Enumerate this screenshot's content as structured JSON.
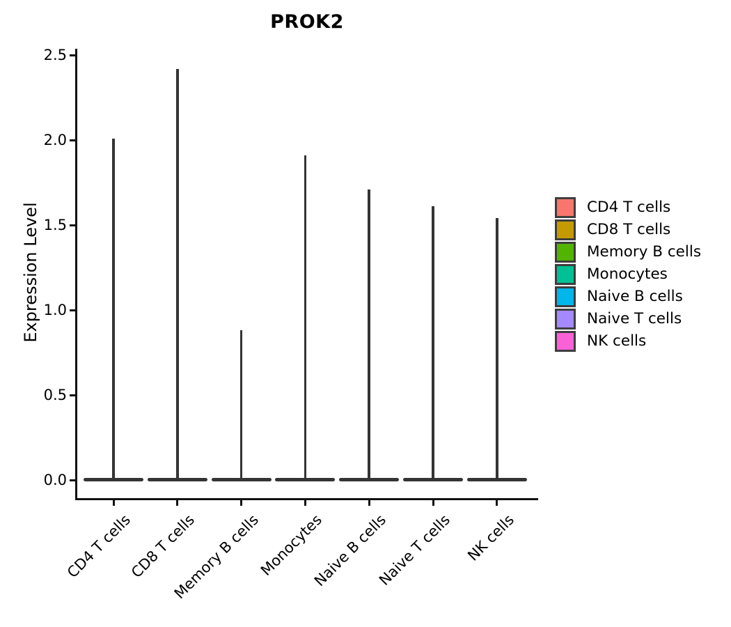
{
  "chart_data": {
    "type": "violin",
    "title": "PROK2",
    "xlabel": "",
    "ylabel": "Expression Level",
    "categories": [
      "CD4 T cells",
      "CD8 T cells",
      "Memory B cells",
      "Monocytes",
      "Naive B cells",
      "Naive T cells",
      "NK cells"
    ],
    "series": [
      {
        "name": "spike top (max expression level)",
        "values": [
          2.01,
          2.42,
          0.88,
          1.91,
          1.71,
          1.61,
          1.54
        ]
      },
      {
        "name": "density mode (flat violin base)",
        "values": [
          0.0,
          0.0,
          0.0,
          0.0,
          0.0,
          0.0,
          0.0
        ]
      }
    ],
    "ylim": [
      0,
      2.5
    ],
    "yticks": [
      "0.0",
      "0.5",
      "1.0",
      "1.5",
      "2.0",
      "2.5"
    ],
    "grid": "off",
    "legend_position": "right",
    "violin_outline_color": "#343434",
    "colors": [
      "#F8766D",
      "#C49A00",
      "#53B400",
      "#00C094",
      "#00B6EB",
      "#A58AFF",
      "#FB61D7"
    ],
    "legend_entries": [
      {
        "label": "CD4 T cells",
        "color": "#F8766D"
      },
      {
        "label": "CD8 T cells",
        "color": "#C49A00"
      },
      {
        "label": "Memory B cells",
        "color": "#53B400"
      },
      {
        "label": "Monocytes",
        "color": "#00C094"
      },
      {
        "label": "Naive B cells",
        "color": "#00B6EB"
      },
      {
        "label": "Naive T cells",
        "color": "#A58AFF"
      },
      {
        "label": "NK cells",
        "color": "#FB61D7"
      }
    ],
    "note": "Each violin is squashed flat at expression 0 (wide thin base) with a narrow vertical spike reaching the maximum expression value."
  }
}
